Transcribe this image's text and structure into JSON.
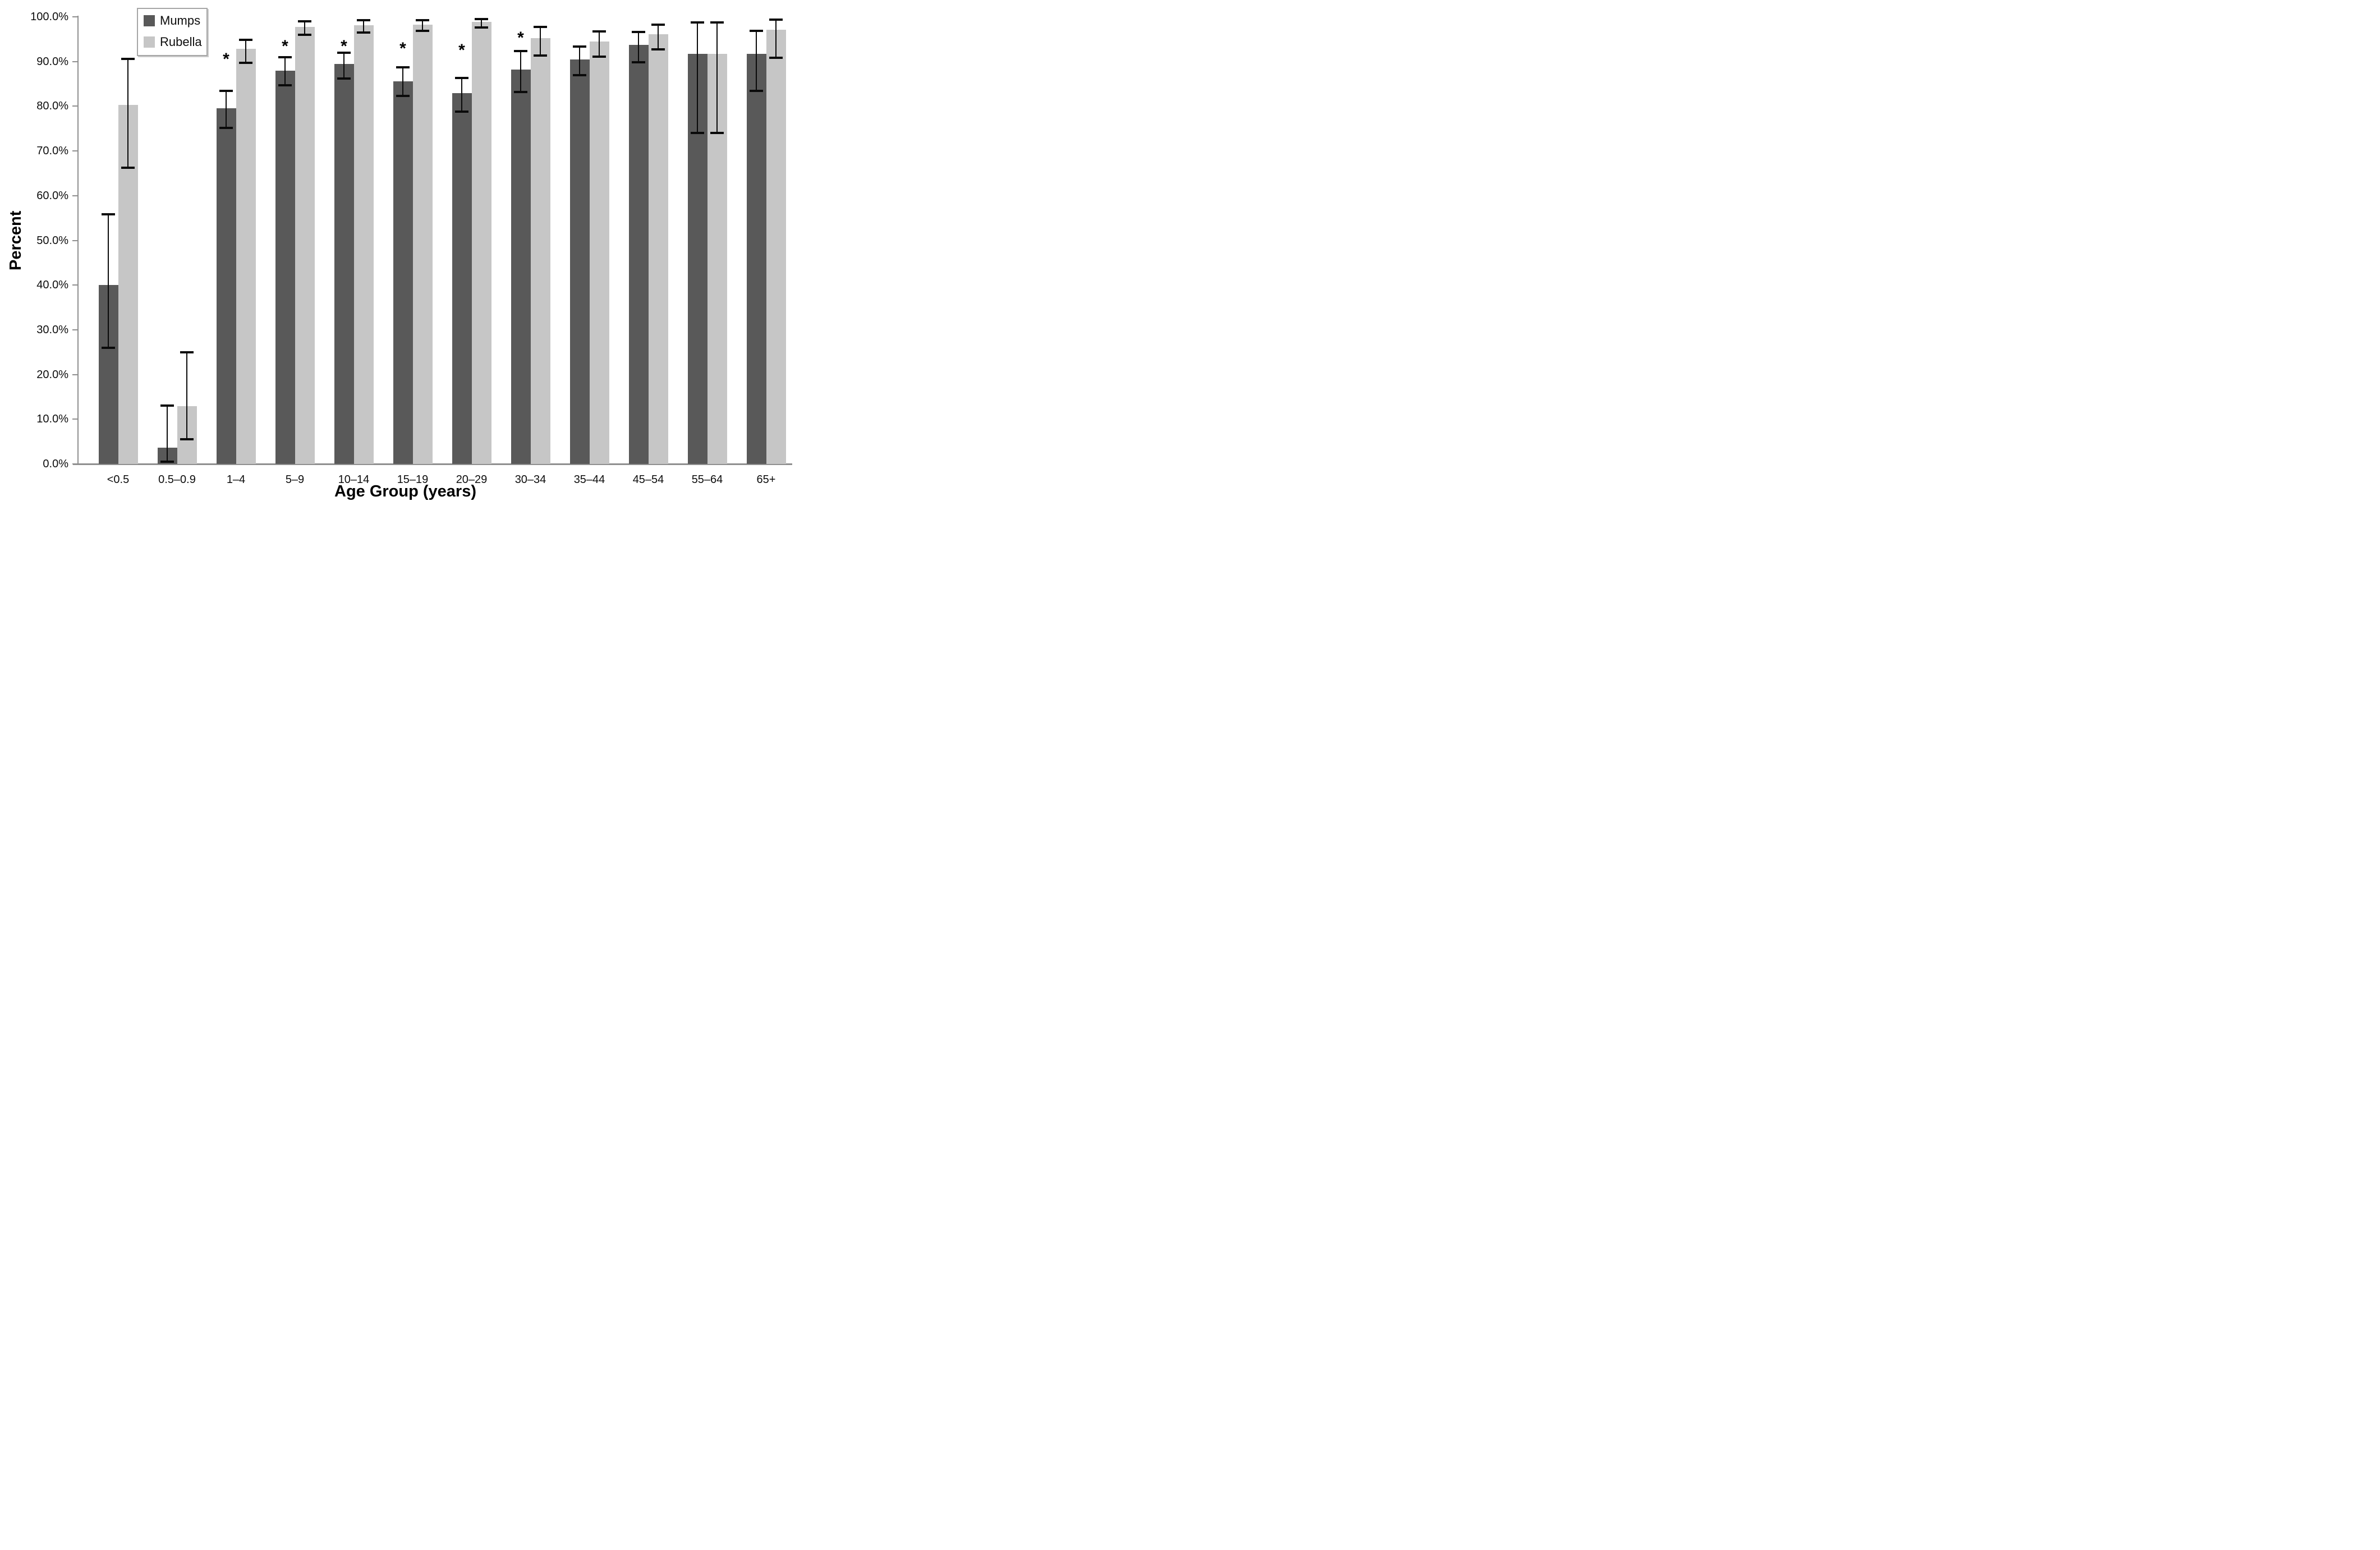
{
  "chart_data": {
    "type": "bar",
    "title": "",
    "xlabel": "Age Group (years)",
    "ylabel": "Percent",
    "ylim": [
      0,
      100
    ],
    "grid": false,
    "legend_position": "top-left-inside",
    "ytick_values": [
      0,
      10,
      20,
      30,
      40,
      50,
      60,
      70,
      80,
      90,
      100
    ],
    "ytick_labels": [
      "0.0%",
      "10.0%",
      "20.0%",
      "30.0%",
      "40.0%",
      "50.0%",
      "60.0%",
      "70.0%",
      "80.0%",
      "90.0%",
      "100.0%"
    ],
    "categories": [
      "<0.5",
      "0.5–0.9",
      "1–4",
      "5–9",
      "10–14",
      "15–19",
      "20–29",
      "30–34",
      "35–44",
      "45–54",
      "55–64",
      "65+"
    ],
    "series": [
      {
        "name": "Mumps",
        "color": "#595959",
        "values": [
          40.0,
          3.6,
          79.5,
          88.0,
          89.4,
          85.6,
          82.9,
          88.2,
          90.5,
          93.7,
          91.7,
          91.7
        ],
        "ci_low": [
          26.0,
          0.5,
          75.1,
          84.7,
          86.2,
          82.3,
          78.8,
          83.2,
          86.9,
          89.8,
          74.0,
          83.4
        ],
        "ci_high": [
          55.8,
          13.0,
          83.4,
          91.0,
          92.0,
          88.7,
          86.3,
          92.4,
          93.3,
          96.6,
          98.8,
          96.9
        ]
      },
      {
        "name": "Rubella",
        "color": "#c6c6c6",
        "values": [
          80.3,
          12.9,
          92.8,
          97.8,
          98.1,
          98.2,
          98.9,
          95.2,
          94.5,
          96.1,
          91.7,
          97.1
        ],
        "ci_low": [
          66.2,
          5.5,
          89.7,
          96.0,
          96.5,
          96.9,
          97.6,
          91.4,
          91.1,
          92.7,
          74.0,
          90.8
        ],
        "ci_high": [
          90.6,
          25.0,
          94.9,
          99.0,
          99.2,
          99.2,
          99.5,
          97.7,
          96.8,
          98.3,
          98.8,
          99.4
        ]
      }
    ],
    "significance_marks": [
      {
        "category": "1–4",
        "series": "Mumps",
        "symbol": "*",
        "y": 91.0
      },
      {
        "category": "5–9",
        "series": "Mumps",
        "symbol": "*",
        "y": 93.9
      },
      {
        "category": "10–14",
        "series": "Mumps",
        "symbol": "*",
        "y": 93.9
      },
      {
        "category": "15–19",
        "series": "Mumps",
        "symbol": "*",
        "y": 93.4
      },
      {
        "category": "20–29",
        "series": "Mumps",
        "symbol": "*",
        "y": 93.0
      },
      {
        "category": "30–34",
        "series": "Mumps",
        "symbol": "*",
        "y": 95.7
      }
    ],
    "colors": {
      "axis_line": "#8f8f8f",
      "tick_mark": "#8f8f8f",
      "error_bar": "#0a0a0a",
      "text": "#0d0d0d",
      "background": "#ffffff"
    }
  }
}
